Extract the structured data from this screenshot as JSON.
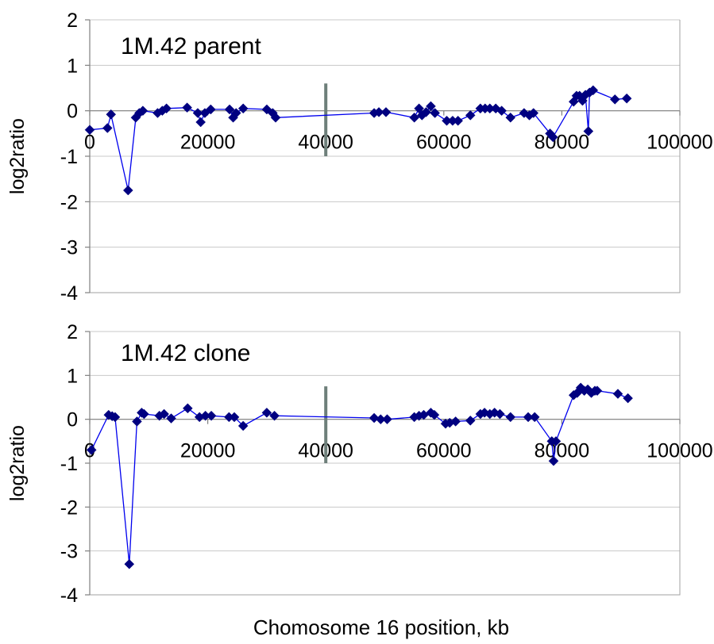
{
  "xlabel": "Chomosome 16 position, kb",
  "chart_data": [
    {
      "type": "line",
      "title": "1M.42 parent",
      "ylabel": "log2ratio",
      "xlim": [
        0,
        100000
      ],
      "ylim": [
        -4,
        2
      ],
      "xticks": [
        "0",
        "20000",
        "40000",
        "60000",
        "80000",
        "100000"
      ],
      "yticks": [
        "2",
        "1",
        "0",
        "-1",
        "-2",
        "-3",
        "-4"
      ],
      "marker_x": 40000,
      "marker_range": [
        -1.0,
        0.6
      ],
      "grid": "horizontal",
      "series_color": "#000080",
      "points": [
        [
          0,
          -0.42
        ],
        [
          3000,
          -0.38
        ],
        [
          3600,
          -0.08
        ],
        [
          6500,
          -1.75
        ],
        [
          7800,
          -0.15
        ],
        [
          8400,
          -0.05
        ],
        [
          9000,
          0.0
        ],
        [
          11500,
          -0.05
        ],
        [
          12300,
          0.0
        ],
        [
          13000,
          0.05
        ],
        [
          16500,
          0.07
        ],
        [
          18300,
          -0.05
        ],
        [
          18800,
          -0.25
        ],
        [
          19500,
          -0.05
        ],
        [
          20500,
          0.03
        ],
        [
          23700,
          0.03
        ],
        [
          24300,
          -0.15
        ],
        [
          24800,
          -0.05
        ],
        [
          26000,
          0.05
        ],
        [
          30000,
          0.03
        ],
        [
          31000,
          -0.05
        ],
        [
          31500,
          -0.15
        ],
        [
          48200,
          -0.05
        ],
        [
          49000,
          -0.03
        ],
        [
          50200,
          -0.03
        ],
        [
          55000,
          -0.15
        ],
        [
          55800,
          0.05
        ],
        [
          56300,
          -0.1
        ],
        [
          57000,
          -0.03
        ],
        [
          57800,
          0.1
        ],
        [
          58500,
          -0.05
        ],
        [
          60500,
          -0.22
        ],
        [
          61500,
          -0.22
        ],
        [
          62400,
          -0.22
        ],
        [
          64500,
          -0.1
        ],
        [
          66200,
          0.05
        ],
        [
          67000,
          0.05
        ],
        [
          67800,
          0.05
        ],
        [
          68800,
          0.05
        ],
        [
          69800,
          0.0
        ],
        [
          71300,
          -0.15
        ],
        [
          73600,
          -0.05
        ],
        [
          74500,
          -0.1
        ],
        [
          75200,
          -0.05
        ],
        [
          78000,
          -0.5
        ],
        [
          78500,
          -0.58
        ],
        [
          82000,
          0.2
        ],
        [
          82500,
          0.33
        ],
        [
          83000,
          0.33
        ],
        [
          83500,
          0.22
        ],
        [
          84000,
          0.35
        ],
        [
          84500,
          -0.45
        ],
        [
          84700,
          0.4
        ],
        [
          85300,
          0.45
        ],
        [
          89000,
          0.25
        ],
        [
          91000,
          0.27
        ]
      ]
    },
    {
      "type": "line",
      "title": "1M.42 clone",
      "ylabel": "log2ratio",
      "xlim": [
        0,
        100000
      ],
      "ylim": [
        -4,
        2
      ],
      "xticks": [
        "0",
        "20000",
        "40000",
        "60000",
        "80000",
        "100000"
      ],
      "yticks": [
        "2",
        "1",
        "0",
        "-1",
        "-2",
        "-3",
        "-4"
      ],
      "marker_x": 40000,
      "marker_range": [
        -1.0,
        0.75
      ],
      "grid": "horizontal",
      "series_color": "#000080",
      "points": [
        [
          300,
          -0.7
        ],
        [
          3200,
          0.1
        ],
        [
          3800,
          0.07
        ],
        [
          4300,
          0.05
        ],
        [
          6700,
          -3.3
        ],
        [
          8000,
          -0.05
        ],
        [
          8800,
          0.15
        ],
        [
          9200,
          0.12
        ],
        [
          11800,
          0.08
        ],
        [
          12600,
          0.12
        ],
        [
          13800,
          0.02
        ],
        [
          16600,
          0.25
        ],
        [
          18600,
          0.05
        ],
        [
          19600,
          0.08
        ],
        [
          20600,
          0.08
        ],
        [
          23600,
          0.05
        ],
        [
          24500,
          0.05
        ],
        [
          26000,
          -0.15
        ],
        [
          30000,
          0.15
        ],
        [
          31300,
          0.08
        ],
        [
          48200,
          0.03
        ],
        [
          49300,
          0.0
        ],
        [
          50400,
          0.0
        ],
        [
          55000,
          0.05
        ],
        [
          55800,
          0.08
        ],
        [
          56600,
          0.1
        ],
        [
          57800,
          0.15
        ],
        [
          58400,
          0.1
        ],
        [
          60300,
          -0.1
        ],
        [
          61000,
          -0.08
        ],
        [
          62000,
          -0.05
        ],
        [
          64500,
          -0.03
        ],
        [
          66200,
          0.12
        ],
        [
          66900,
          0.15
        ],
        [
          67800,
          0.12
        ],
        [
          68600,
          0.15
        ],
        [
          69500,
          0.12
        ],
        [
          71300,
          0.05
        ],
        [
          74300,
          0.05
        ],
        [
          75400,
          0.05
        ],
        [
          78300,
          -0.5
        ],
        [
          78600,
          -0.95
        ],
        [
          79000,
          -0.5
        ],
        [
          82000,
          0.55
        ],
        [
          82600,
          0.6
        ],
        [
          83200,
          0.72
        ],
        [
          83800,
          0.65
        ],
        [
          84400,
          0.68
        ],
        [
          85000,
          0.6
        ],
        [
          85600,
          0.65
        ],
        [
          86000,
          0.65
        ],
        [
          89500,
          0.58
        ],
        [
          91200,
          0.48
        ]
      ]
    }
  ]
}
